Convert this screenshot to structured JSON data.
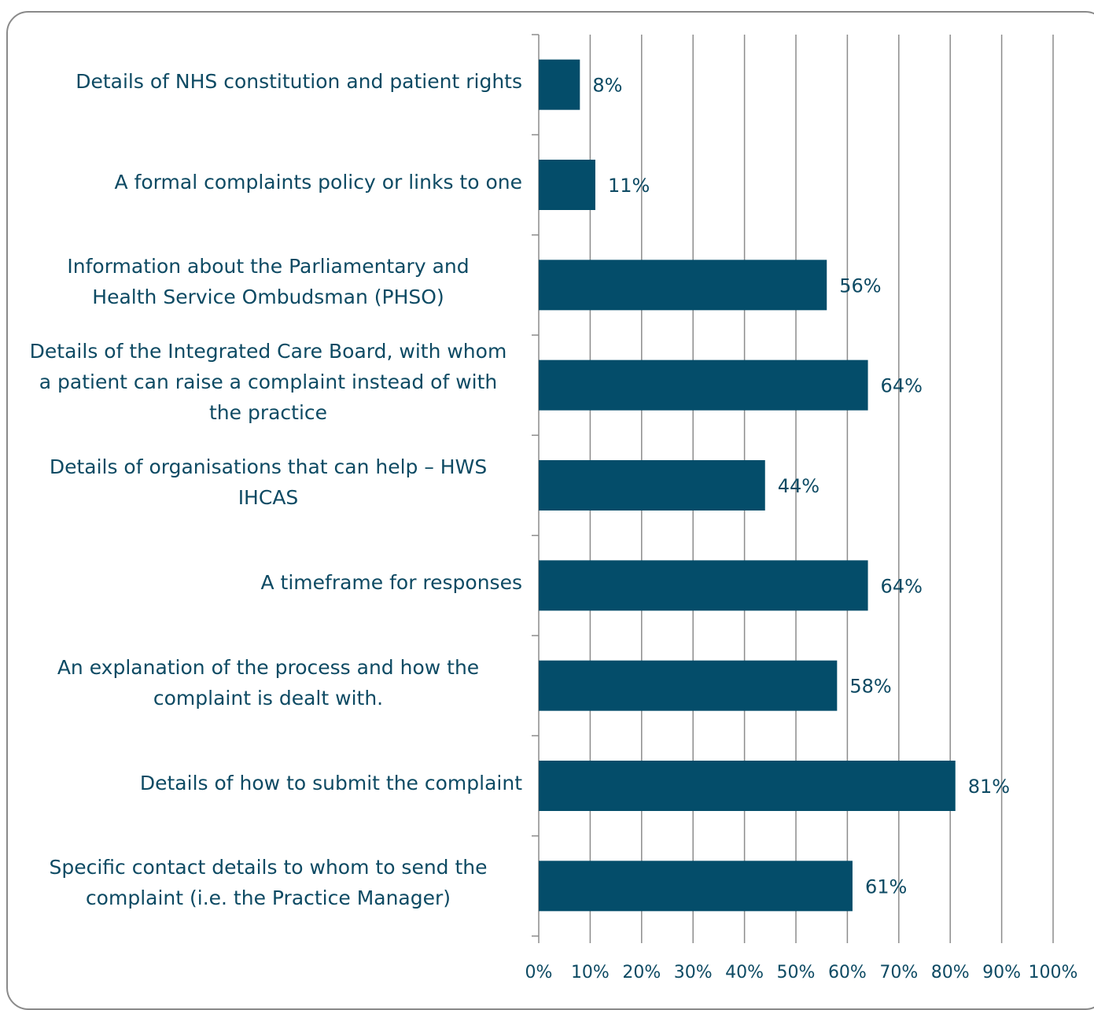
{
  "chart_data": {
    "type": "bar",
    "orientation": "horizontal",
    "title": "",
    "xlabel": "",
    "ylabel": "",
    "xlim": [
      0,
      100
    ],
    "x_ticks": [
      "0%",
      "10%",
      "20%",
      "30%",
      "40%",
      "50%",
      "60%",
      "70%",
      "80%",
      "90%",
      "100%"
    ],
    "grid": "vertical",
    "legend": "none",
    "bar_color": "#044d6a",
    "categories": [
      "Details of NHS constitution and patient rights",
      "A formal complaints policy or links to one",
      "Information about the Parliamentary and Health Service Ombudsman (PHSO)",
      "Details of the Integrated Care Board, with whom a patient can raise a complaint instead of with the practice",
      "Details of organisations that can help – HWS IHCAS",
      "A timeframe for responses",
      "An explanation of the process and how the complaint is dealt with.",
      "Details of how to submit the complaint",
      "Specific contact details to whom to send the complaint (i.e. the Practice Manager)"
    ],
    "category_lines": [
      [
        "Details of NHS constitution and patient rights"
      ],
      [
        "A formal complaints policy or links to one"
      ],
      [
        "Information about the Parliamentary and",
        "Health Service Ombudsman (PHSO)"
      ],
      [
        "Details of the Integrated Care Board, with whom",
        "a patient can raise a complaint instead of with",
        "the practice"
      ],
      [
        "Details of organisations that can help – HWS",
        "IHCAS"
      ],
      [
        "A timeframe for responses"
      ],
      [
        "An explanation of the process and how the",
        "complaint is dealt with."
      ],
      [
        "Details of how to submit the complaint"
      ],
      [
        "Specific contact details to whom to send the",
        "complaint (i.e. the Practice Manager)"
      ]
    ],
    "values": [
      8,
      11,
      56,
      64,
      44,
      64,
      58,
      81,
      61
    ],
    "data_labels": [
      "8%",
      "11%",
      "56%",
      "64%",
      "44%",
      "64%",
      "58%",
      "81%",
      "61%"
    ]
  }
}
